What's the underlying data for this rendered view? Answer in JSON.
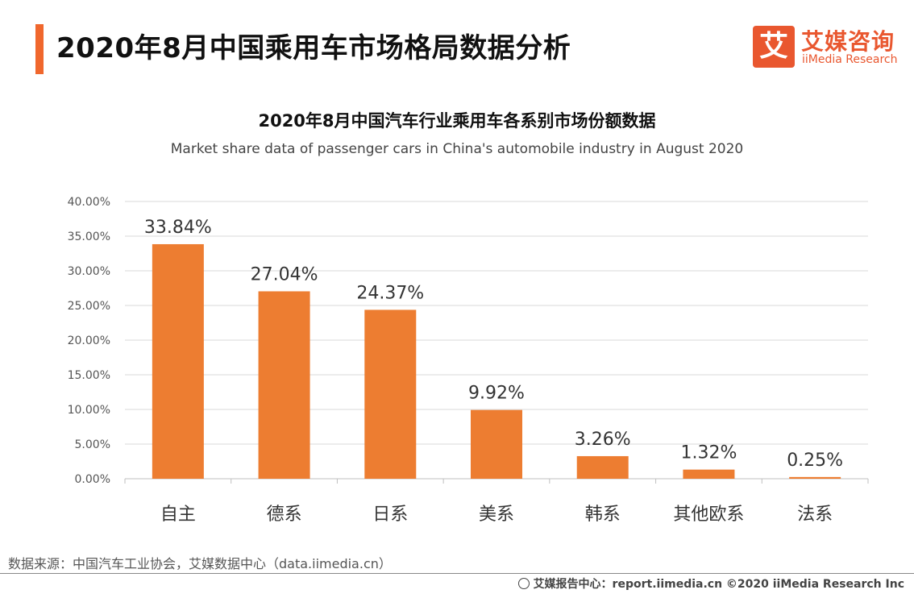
{
  "header": {
    "title": "2020年8月中国乘用车市场格局数据分析",
    "accent_color": "#f0672d"
  },
  "logo": {
    "mark": "艾",
    "name_cn": "艾媒咨询",
    "name_en": "iiMedia Research",
    "color": "#e9572f"
  },
  "chart_data": {
    "type": "bar",
    "title": "2020年8月中国汽车行业乘用车各系别市场份额数据",
    "subtitle": "Market share data of passenger cars in China's automobile industry in August 2020",
    "categories": [
      "自主",
      "德系",
      "日系",
      "美系",
      "韩系",
      "其他欧系",
      "法系"
    ],
    "values": [
      33.84,
      27.04,
      24.37,
      9.92,
      3.26,
      1.32,
      0.25
    ],
    "value_labels": [
      "33.84%",
      "27.04%",
      "24.37%",
      "9.92%",
      "3.26%",
      "1.32%",
      "0.25%"
    ],
    "yticks": [
      "0.00%",
      "5.00%",
      "10.00%",
      "15.00%",
      "20.00%",
      "25.00%",
      "30.00%",
      "35.00%",
      "40.00%"
    ],
    "ylim": [
      0,
      40
    ],
    "bar_color": "#ed7d31",
    "grid": true,
    "legend": "none"
  },
  "source": "数据来源：中国汽车工业协会，艾媒数据中心（data.iimedia.cn）",
  "footer": {
    "text": "艾媒报告中心：report.iimedia.cn   ©2020  iiMedia Research  Inc",
    "icon": "globe-icon"
  }
}
